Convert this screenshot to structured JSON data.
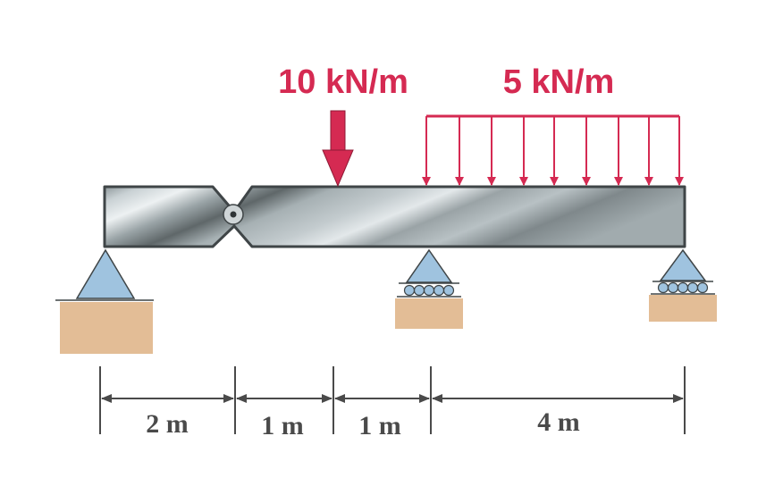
{
  "loads": {
    "point_load_label": "10 kN/m",
    "distributed_load_label": "5 kN/m"
  },
  "dimensions": {
    "seg1": "2 m",
    "seg2": "1 m",
    "seg3": "1 m",
    "seg4": "4 m"
  },
  "colors": {
    "load": "#d52a52",
    "beam": "#a9b3b6",
    "support_triangle": "#9fc3df",
    "ground": "#e3bd96",
    "dimension_line": "#4a4a4a"
  }
}
